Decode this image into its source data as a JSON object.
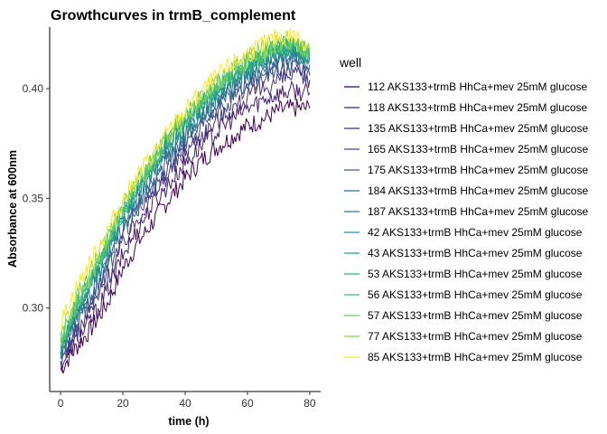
{
  "chart_data": {
    "type": "line",
    "title": "Growthcurves in trmB_complement",
    "xlabel": "time (h)",
    "ylabel": "Absorbance at 600nm",
    "xlim": [
      -3.5,
      83.5
    ],
    "ylim": [
      0.262,
      0.428
    ],
    "x_ticks": [
      0,
      20,
      40,
      60,
      80
    ],
    "x_tick_labels": [
      "0",
      "20",
      "40",
      "60",
      "80"
    ],
    "y_ticks": [
      0.3,
      0.35,
      0.4
    ],
    "y_tick_labels": [
      "0.30",
      "0.35",
      "0.40"
    ],
    "grid": false,
    "legend": {
      "title": "well",
      "position": "right"
    },
    "x": [
      0,
      5,
      10,
      15,
      20,
      25,
      30,
      35,
      40,
      45,
      50,
      55,
      60,
      65,
      70,
      75,
      80
    ],
    "series": [
      {
        "name": "112 AKS133+trmB HhCa+mev 25mM glucose",
        "color": "#440154",
        "values": [
          0.272,
          0.282,
          0.291,
          0.302,
          0.318,
          0.33,
          0.34,
          0.35,
          0.359,
          0.367,
          0.373,
          0.378,
          0.383,
          0.386,
          0.39,
          0.391,
          0.391
        ]
      },
      {
        "name": "118 AKS133+trmB HhCa+mev 25mM glucose",
        "color": "#481B6D",
        "values": [
          0.274,
          0.285,
          0.295,
          0.308,
          0.324,
          0.337,
          0.348,
          0.357,
          0.366,
          0.374,
          0.38,
          0.386,
          0.391,
          0.395,
          0.398,
          0.399,
          0.398
        ]
      },
      {
        "name": "135 AKS133+trmB HhCa+mev 25mM glucose",
        "color": "#46327E",
        "values": [
          0.276,
          0.288,
          0.3,
          0.313,
          0.329,
          0.342,
          0.352,
          0.362,
          0.371,
          0.379,
          0.385,
          0.391,
          0.396,
          0.4,
          0.404,
          0.406,
          0.404
        ]
      },
      {
        "name": "165 AKS133+trmB HhCa+mev 25mM glucose",
        "color": "#3F4788",
        "values": [
          0.277,
          0.291,
          0.303,
          0.317,
          0.333,
          0.345,
          0.355,
          0.365,
          0.374,
          0.382,
          0.389,
          0.395,
          0.4,
          0.405,
          0.409,
          0.41,
          0.406
        ]
      },
      {
        "name": "175 AKS133+trmB HhCa+mev 25mM glucose",
        "color": "#365C8D",
        "values": [
          0.278,
          0.293,
          0.306,
          0.32,
          0.336,
          0.348,
          0.358,
          0.368,
          0.377,
          0.385,
          0.392,
          0.398,
          0.403,
          0.408,
          0.412,
          0.413,
          0.409
        ]
      },
      {
        "name": "184 AKS133+trmB HhCa+mev 25mM glucose",
        "color": "#2E6E8E",
        "values": [
          0.279,
          0.295,
          0.308,
          0.322,
          0.338,
          0.35,
          0.36,
          0.37,
          0.379,
          0.387,
          0.394,
          0.4,
          0.405,
          0.41,
          0.414,
          0.415,
          0.411
        ]
      },
      {
        "name": "187 AKS133+trmB HhCa+mev 25mM glucose",
        "color": "#277F8E",
        "values": [
          0.28,
          0.297,
          0.31,
          0.324,
          0.34,
          0.352,
          0.362,
          0.372,
          0.381,
          0.389,
          0.396,
          0.402,
          0.407,
          0.412,
          0.416,
          0.417,
          0.413
        ]
      },
      {
        "name": "42 AKS133+trmB HhCa+mev 25mM glucose",
        "color": "#21908C",
        "values": [
          0.281,
          0.298,
          0.312,
          0.326,
          0.342,
          0.354,
          0.364,
          0.374,
          0.383,
          0.391,
          0.398,
          0.404,
          0.409,
          0.414,
          0.418,
          0.419,
          0.415
        ]
      },
      {
        "name": "43 AKS133+trmB HhCa+mev 25mM glucose",
        "color": "#1FA088",
        "values": [
          0.282,
          0.299,
          0.313,
          0.327,
          0.343,
          0.355,
          0.365,
          0.375,
          0.384,
          0.392,
          0.399,
          0.405,
          0.41,
          0.414,
          0.418,
          0.418,
          0.414
        ]
      },
      {
        "name": "53 AKS133+trmB HhCa+mev 25mM glucose",
        "color": "#28AE80",
        "values": [
          0.283,
          0.3,
          0.314,
          0.328,
          0.344,
          0.356,
          0.366,
          0.376,
          0.385,
          0.393,
          0.4,
          0.406,
          0.411,
          0.415,
          0.419,
          0.419,
          0.415
        ]
      },
      {
        "name": "56 AKS133+trmB HhCa+mev 25mM glucose",
        "color": "#3FBC73",
        "values": [
          0.284,
          0.301,
          0.315,
          0.329,
          0.345,
          0.357,
          0.367,
          0.377,
          0.386,
          0.394,
          0.401,
          0.407,
          0.412,
          0.416,
          0.42,
          0.42,
          0.416
        ]
      },
      {
        "name": "57 AKS133+trmB HhCa+mev 25mM glucose",
        "color": "#5EC962",
        "values": [
          0.285,
          0.302,
          0.316,
          0.33,
          0.346,
          0.358,
          0.368,
          0.378,
          0.387,
          0.395,
          0.402,
          0.408,
          0.413,
          0.417,
          0.421,
          0.421,
          0.417
        ]
      },
      {
        "name": "77 AKS133+trmB HhCa+mev 25mM glucose",
        "color": "#84D44B",
        "values": [
          0.287,
          0.304,
          0.318,
          0.332,
          0.347,
          0.359,
          0.369,
          0.379,
          0.388,
          0.396,
          0.403,
          0.409,
          0.414,
          0.418,
          0.421,
          0.421,
          0.417
        ]
      },
      {
        "name": "85 AKS133+trmB HhCa+mev 25mM glucose",
        "color": "#FDE725",
        "values": [
          0.293,
          0.309,
          0.322,
          0.335,
          0.349,
          0.361,
          0.371,
          0.381,
          0.39,
          0.398,
          0.405,
          0.411,
          0.416,
          0.42,
          0.424,
          0.424,
          0.42
        ]
      }
    ]
  }
}
